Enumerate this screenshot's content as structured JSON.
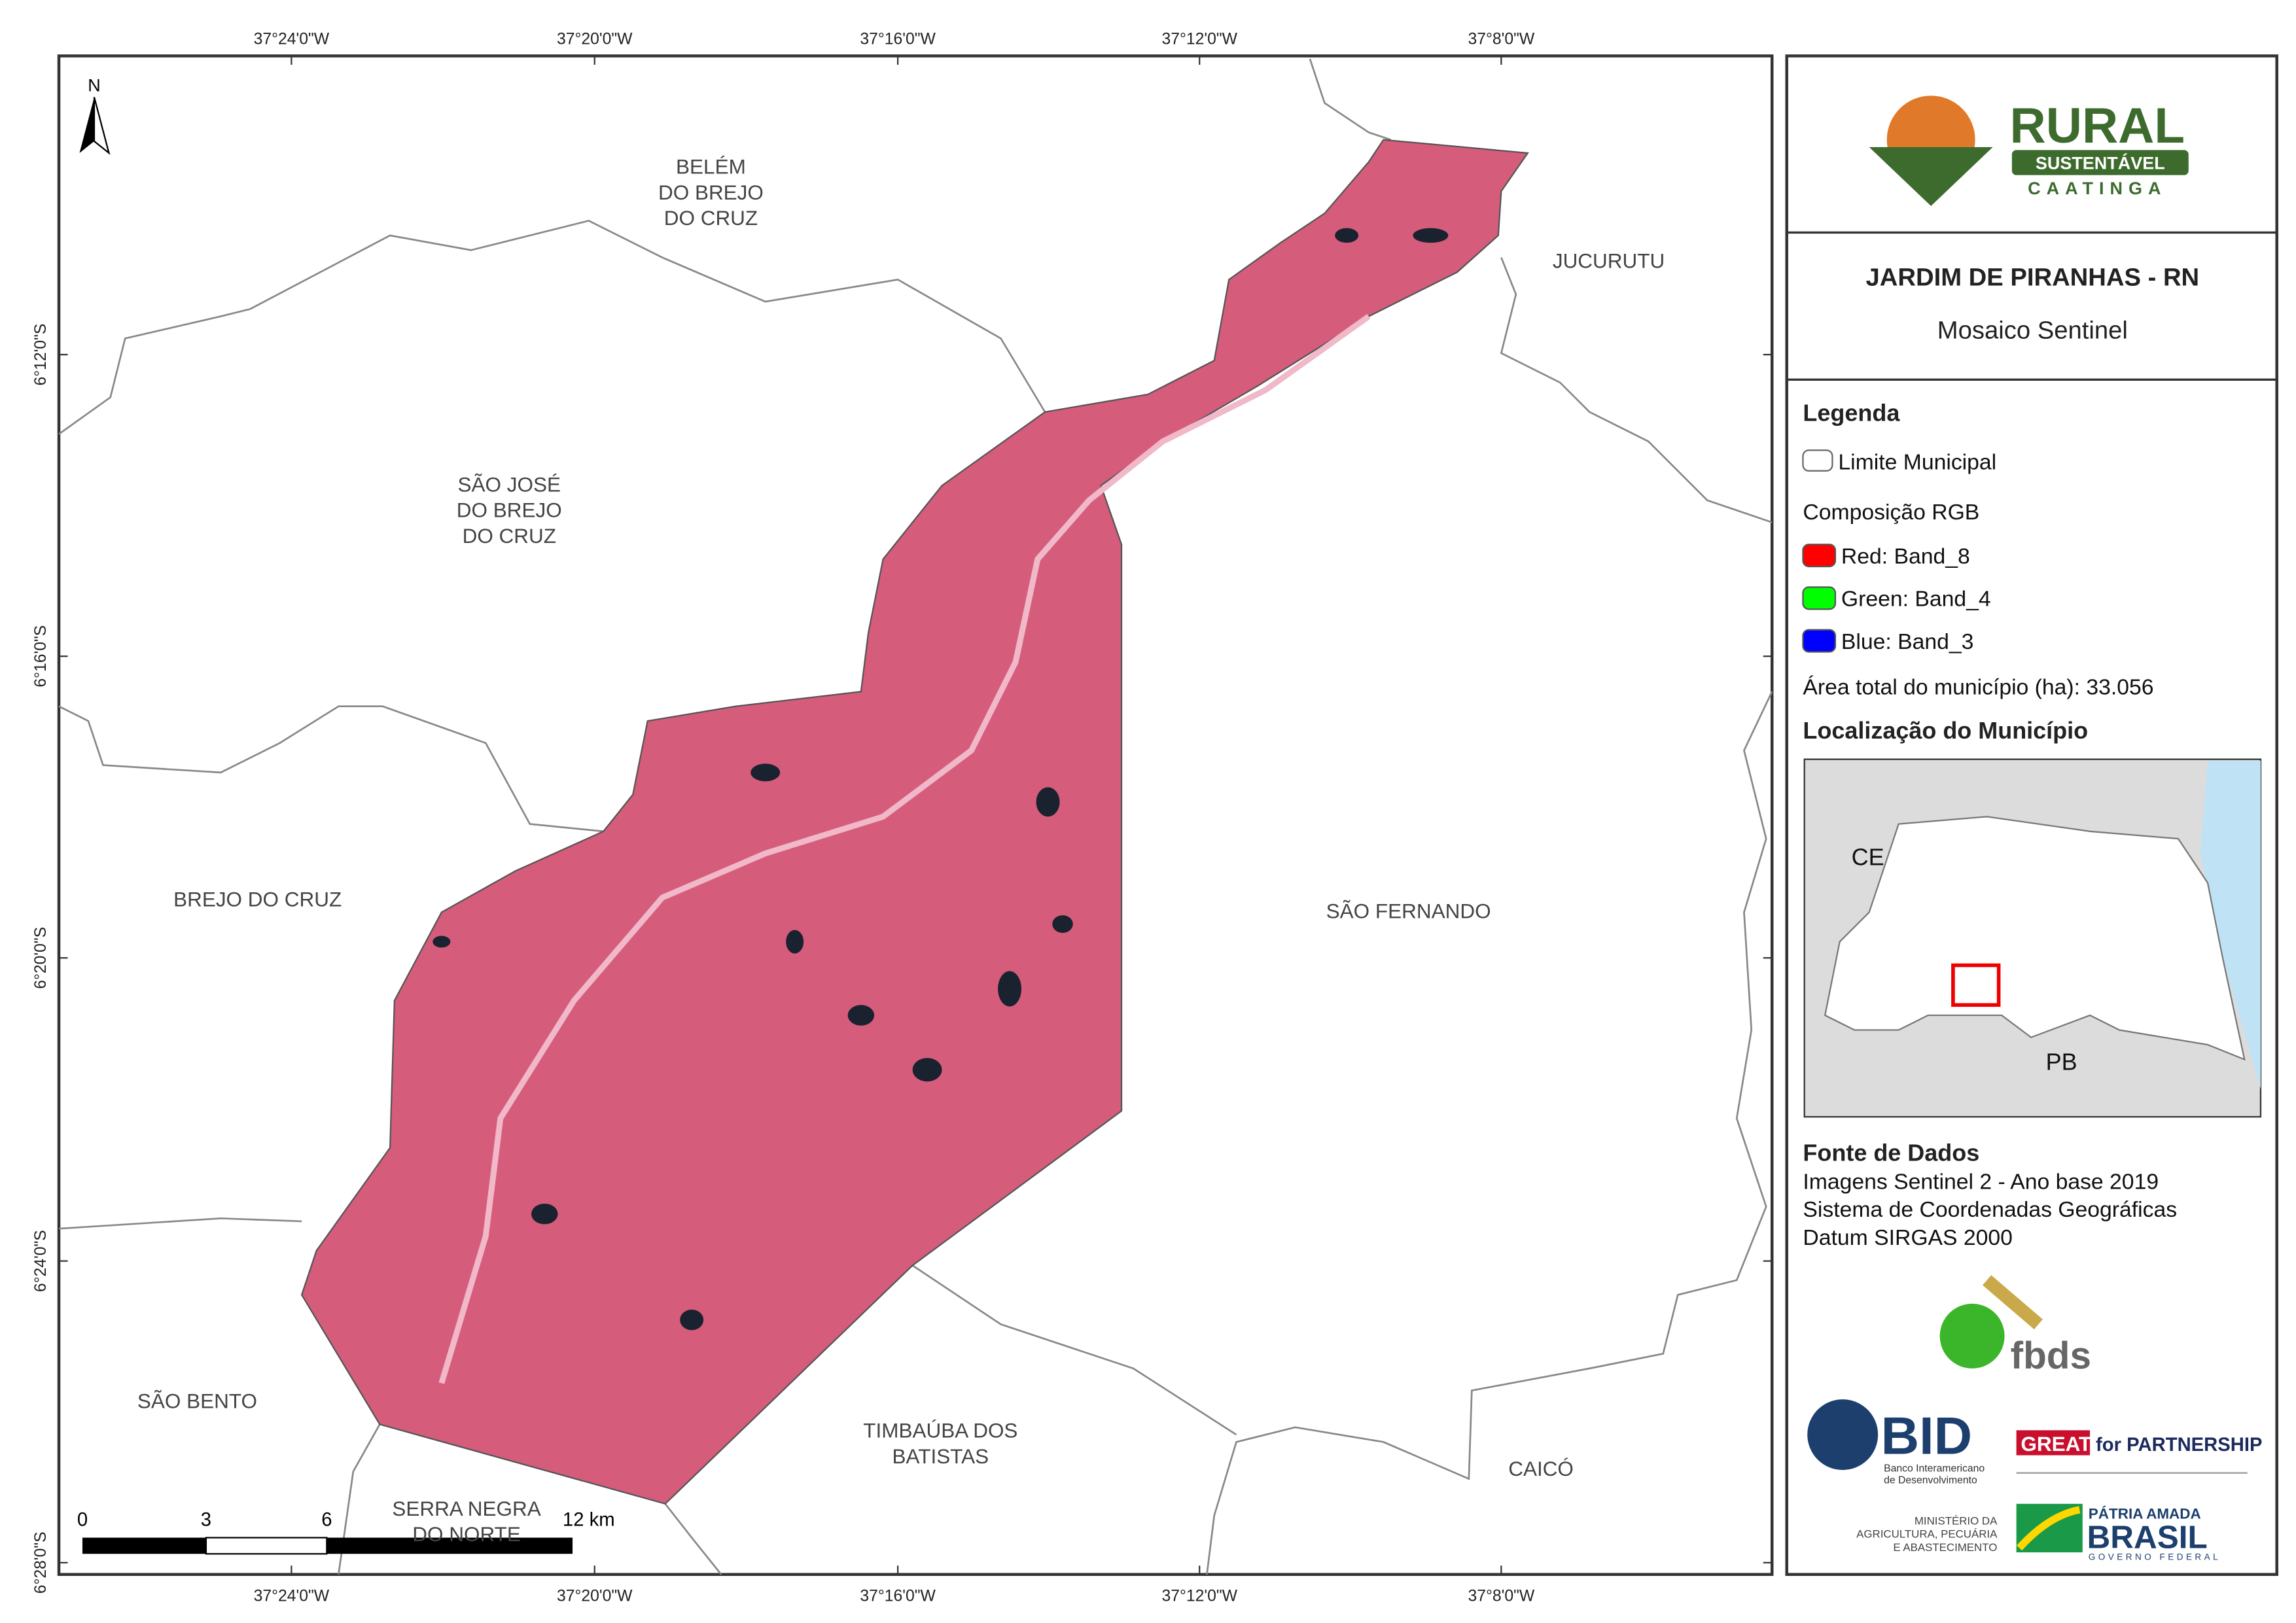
{
  "map": {
    "top_coords": [
      "37°24'0\"W",
      "37°20'0\"W",
      "37°16'0\"W",
      "37°12'0\"W",
      "37°8'0\"W"
    ],
    "bottom_coords": [
      "37°24'0\"W",
      "37°20'0\"W",
      "37°16'0\"W",
      "37°12'0\"W",
      "37°8'0\"W"
    ],
    "left_coords": [
      "6°12'0\"S",
      "6°16'0\"S",
      "6°20'0\"S",
      "6°24'0\"S",
      "6°28'0\"S"
    ],
    "north": "N",
    "places": [
      {
        "lines": [
          "BELÉM",
          "DO BREJO",
          "DO CRUZ"
        ]
      },
      {
        "lines": [
          "JUCURUTU"
        ]
      },
      {
        "lines": [
          "SÃO JOSÉ",
          "DO BREJO",
          "DO CRUZ"
        ]
      },
      {
        "lines": [
          "BREJO DO CRUZ"
        ]
      },
      {
        "lines": [
          "SÃO FERNANDO"
        ]
      },
      {
        "lines": [
          "SÃO BENTO"
        ]
      },
      {
        "lines": [
          "TIMBAÚBA DOS",
          "BATISTAS"
        ]
      },
      {
        "lines": [
          "CAICÓ"
        ]
      },
      {
        "lines": [
          "SERRA NEGRA",
          "DO NORTE"
        ]
      }
    ],
    "scale_labels": [
      "0",
      "3",
      "6",
      "12 km"
    ]
  },
  "panel": {
    "logo": {
      "line1": "RURAL",
      "line2": "SUSTENTÁVEL",
      "line3": "CAATINGA"
    },
    "title": "JARDIM DE PIRANHAS - RN",
    "subtitle": "Mosaico Sentinel",
    "legend": {
      "heading": "Legenda",
      "boundary": "Limite Municipal",
      "composition": "Composição RGB",
      "bands": [
        {
          "label": "Red:     Band_8",
          "color": "#ff0000"
        },
        {
          "label": "Green: Band_4",
          "color": "#00ff00"
        },
        {
          "label": "Blue:    Band_3",
          "color": "#0000ff"
        }
      ],
      "area": "Área total do município (ha): 33.056"
    },
    "location": {
      "heading": "Localização do Município",
      "ce": "CE",
      "pb": "PB"
    },
    "sources": {
      "heading": "Fonte de Dados",
      "lines": [
        "Imagens Sentinel 2 - Ano base 2019",
        "Sistema de Coordenadas Geográficas",
        "Datum SIRGAS 2000"
      ]
    },
    "logos": {
      "fbds": "fbds",
      "bid": "BID",
      "bid_sub": [
        "Banco Interamericano",
        "de Desenvolvimento"
      ],
      "great": "GREAT",
      "great_rest": "for PARTNERSHIP",
      "ministry": [
        "MINISTÉRIO DA",
        "AGRICULTURA, PECUÁRIA",
        "E ABASTECIMENTO"
      ],
      "brasil_top": "PÁTRIA AMADA",
      "brasil": "BRASIL",
      "brasil_sub": "GOVERNO FEDERAL"
    }
  }
}
